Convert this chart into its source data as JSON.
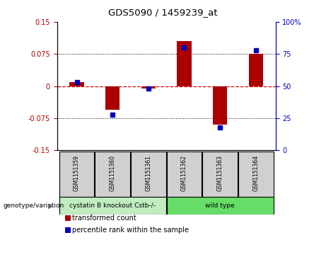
{
  "title": "GDS5090 / 1459239_at",
  "samples": [
    "GSM1151359",
    "GSM1151360",
    "GSM1151361",
    "GSM1151362",
    "GSM1151363",
    "GSM1151364"
  ],
  "transformed_count": [
    0.01,
    -0.055,
    -0.005,
    0.105,
    -0.09,
    0.075
  ],
  "percentile_rank": [
    53,
    28,
    48,
    80,
    18,
    78
  ],
  "group_info": [
    {
      "label": "cystatin B knockout Cstb-/-",
      "start": 0,
      "end": 3,
      "color": "#c0ecc0"
    },
    {
      "label": "wild type",
      "start": 3,
      "end": 6,
      "color": "#66dd66"
    }
  ],
  "ylim_left": [
    -0.15,
    0.15
  ],
  "ylim_right": [
    0,
    100
  ],
  "yticks_left": [
    -0.15,
    -0.075,
    0,
    0.075,
    0.15
  ],
  "yticks_right": [
    0,
    25,
    50,
    75,
    100
  ],
  "bar_color_red": "#AA0000",
  "bar_color_blue": "#0000BB",
  "hline_color": "#DD0000",
  "dot_color": "black",
  "legend_labels": [
    "transformed count",
    "percentile rank within the sample"
  ],
  "legend_colors": [
    "#AA0000",
    "#0000BB"
  ],
  "bar_width": 0.4,
  "sample_box_color": "#d0d0d0"
}
